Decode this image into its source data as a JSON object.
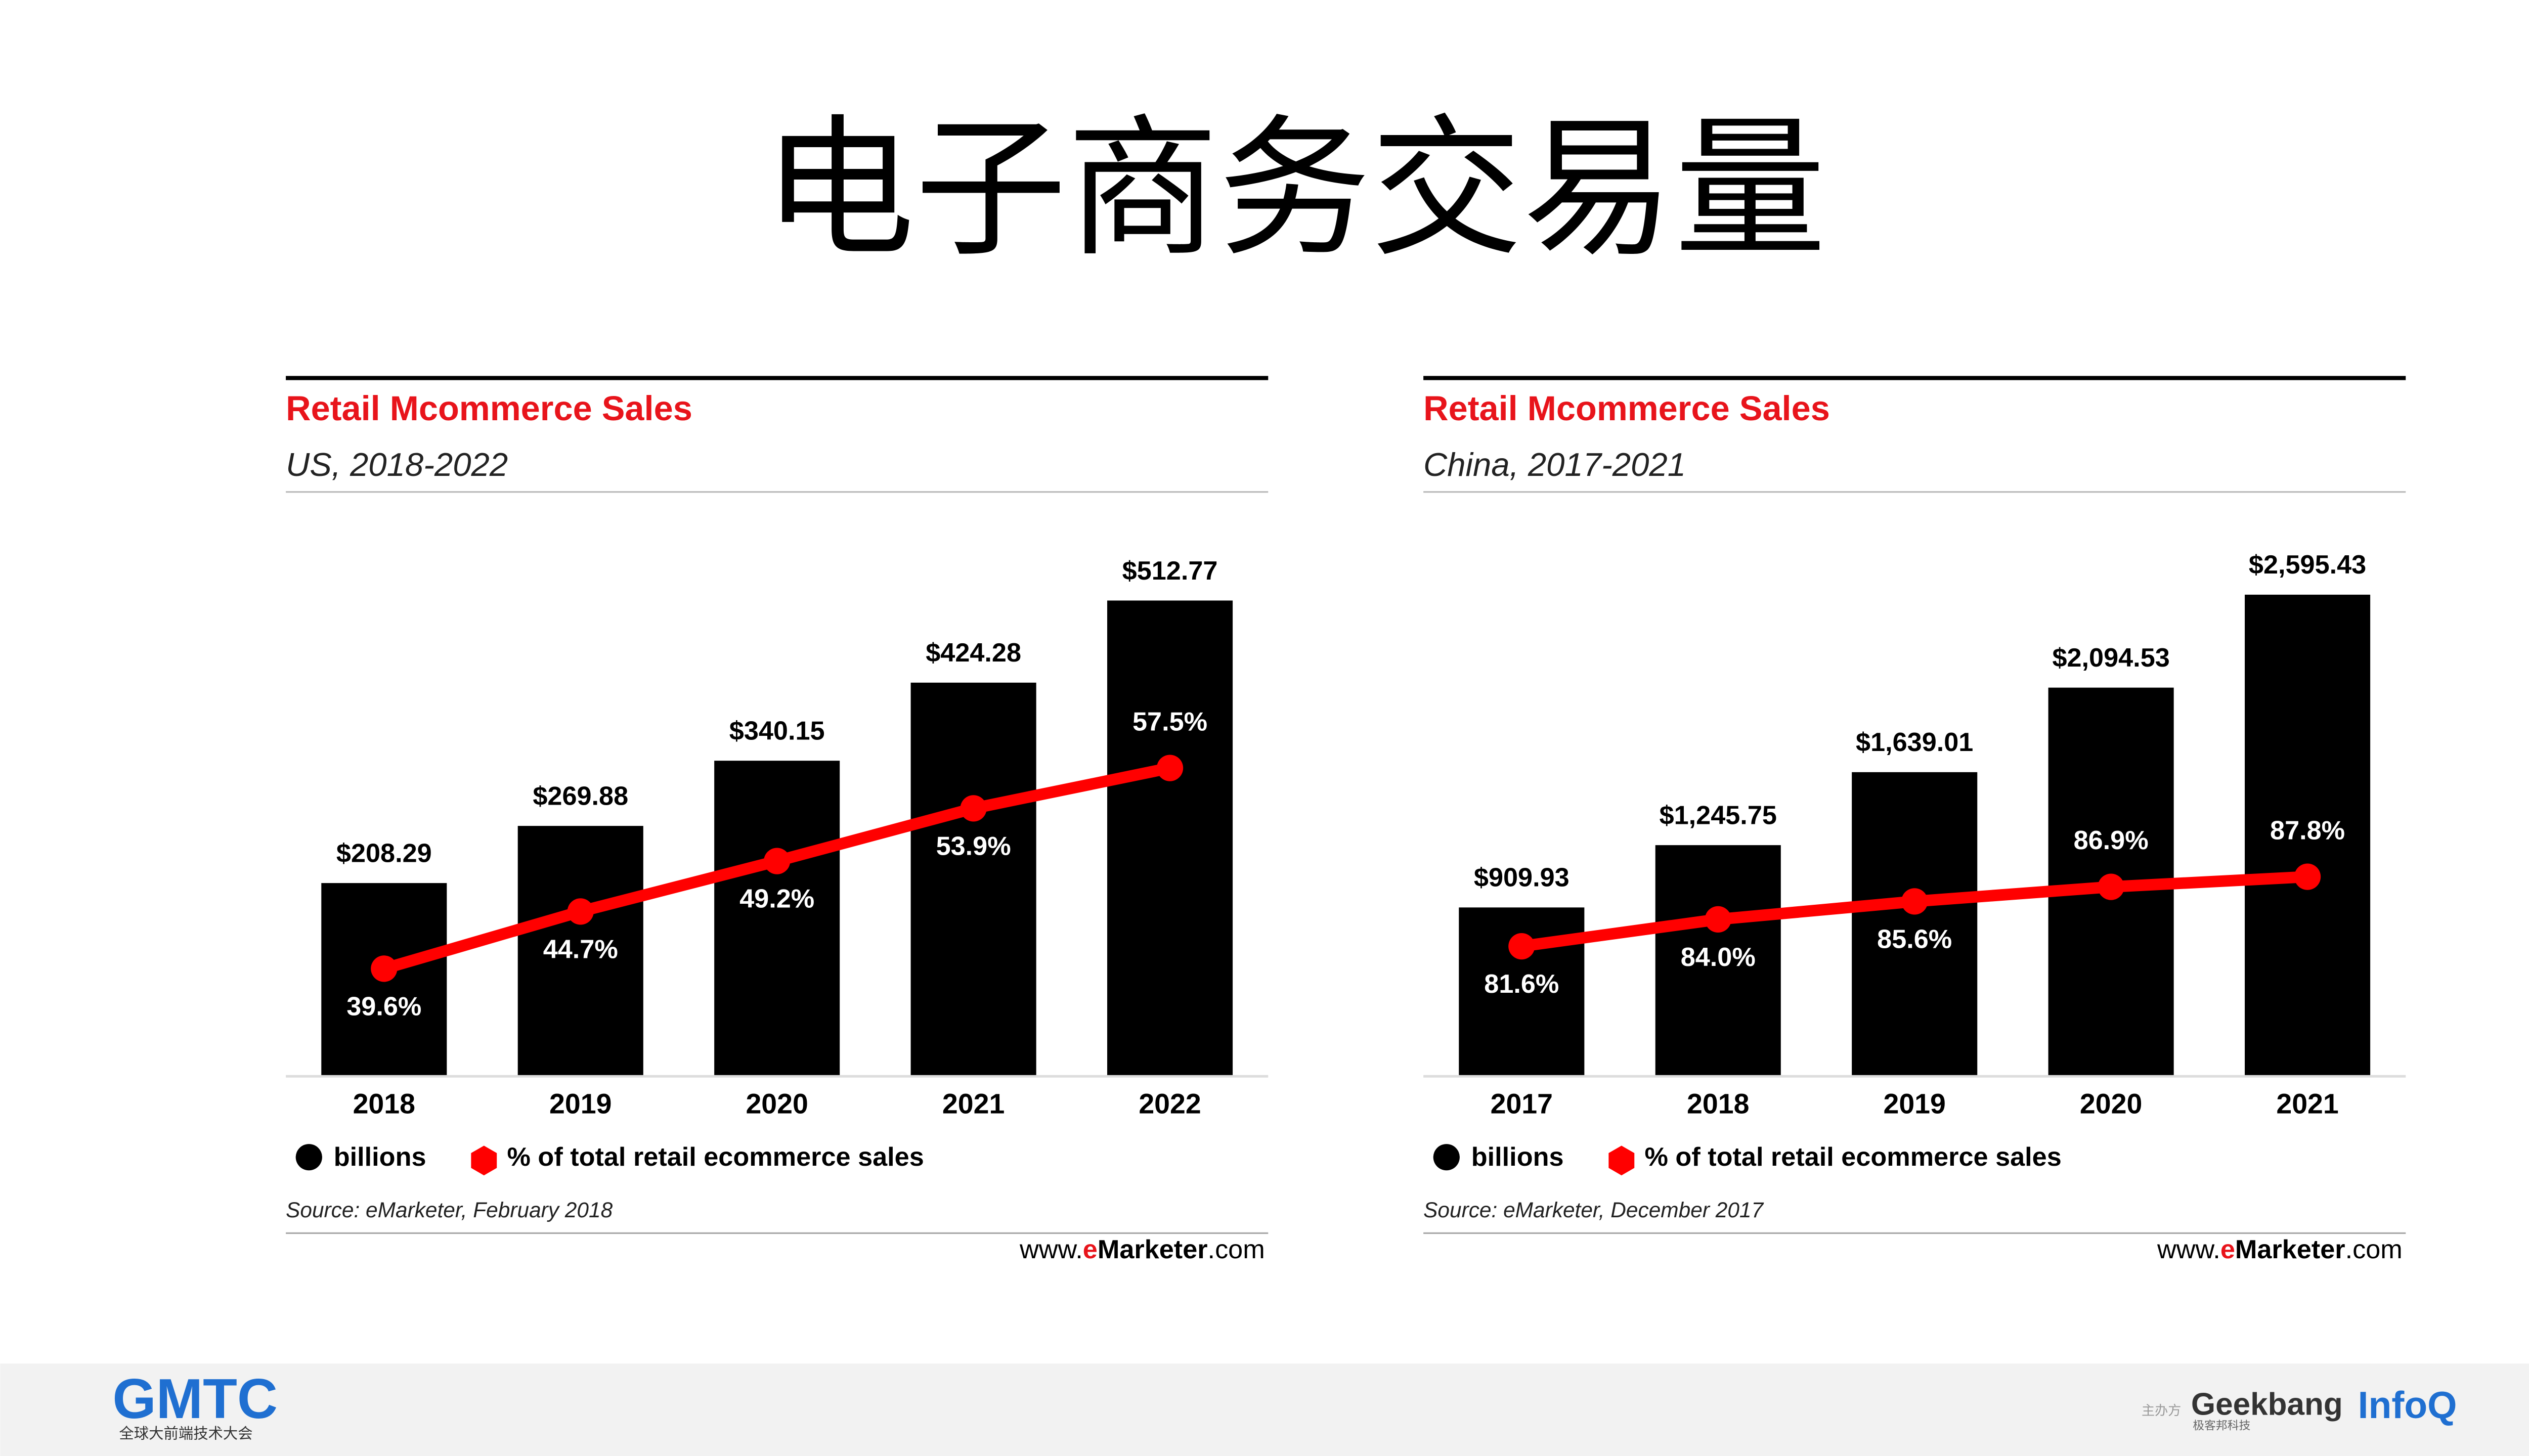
{
  "page_title": "电子商务交易量",
  "footer": {
    "logo": "GMTC",
    "logo_sub": "全球大前端技术大会",
    "host": "主办方",
    "geekbang": "Geekbang",
    "geekbang_sub": "极客邦科技",
    "infoq": "InfoQ"
  },
  "chart_data": [
    {
      "type": "bar",
      "title": "Retail Mcommerce Sales",
      "subtitle": "US, 2018-2022",
      "categories": [
        "2018",
        "2019",
        "2020",
        "2021",
        "2022"
      ],
      "series": [
        {
          "name": "billions",
          "color": "#000000",
          "values": [
            208.29,
            269.88,
            340.15,
            424.28,
            512.77
          ],
          "value_labels": [
            "$208.29",
            "$269.88",
            "$340.15",
            "$424.28",
            "$512.77"
          ]
        },
        {
          "name": "% of total retail ecommerce sales",
          "color": "#ff0000",
          "axis": "y2",
          "type": "line",
          "values": [
            39.6,
            44.7,
            49.2,
            53.9,
            57.5
          ],
          "value_labels": [
            "39.6%",
            "44.7%",
            "49.2%",
            "53.9%",
            "57.5%"
          ]
        }
      ],
      "ylim": [
        0,
        580
      ],
      "y2lim": [
        30,
        78
      ],
      "source": "Source: eMarketer, February 2018",
      "site": [
        "www.",
        "eMarketer",
        ".com"
      ]
    },
    {
      "type": "bar",
      "title": "Retail Mcommerce Sales",
      "subtitle": "China, 2017-2021",
      "categories": [
        "2017",
        "2018",
        "2019",
        "2020",
        "2021"
      ],
      "series": [
        {
          "name": "billions",
          "color": "#000000",
          "values": [
            909.93,
            1245.75,
            1639.01,
            2094.53,
            2595.43
          ],
          "value_labels": [
            "$909.93",
            "$1,245.75",
            "$1,639.01",
            "$2,094.53",
            "$2,595.43"
          ]
        },
        {
          "name": "% of total retail ecommerce sales",
          "color": "#ff0000",
          "axis": "y2",
          "type": "line",
          "values": [
            81.6,
            84.0,
            85.6,
            86.9,
            87.8
          ],
          "value_labels": [
            "81.6%",
            "84.0%",
            "85.6%",
            "86.9%",
            "87.8%"
          ]
        }
      ],
      "ylim": [
        0,
        2900
      ],
      "y2lim": [
        70,
        118
      ],
      "source": "Source: eMarketer, December 2017",
      "site": [
        "www.",
        "eMarketer",
        ".com"
      ]
    }
  ]
}
